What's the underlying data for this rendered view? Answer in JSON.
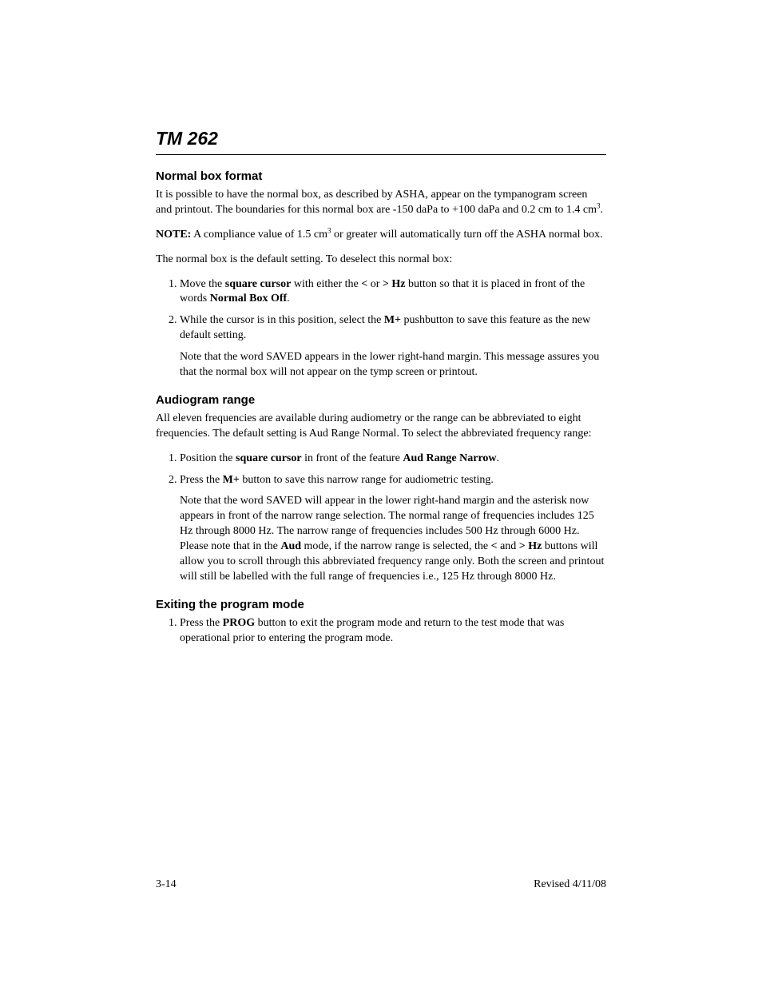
{
  "doc": {
    "title": "TM 262",
    "footer_left": "3-14",
    "footer_right": "Revised 4/11/08"
  },
  "sections": {
    "normal_box": {
      "heading": "Normal box format",
      "p1_a": "It is possible to have the normal box, as described by ASHA, appear on the tympanogram screen and printout. The boundaries for this normal box are -150 daPa to +100 daPa and 0.2 cm to 1.4 cm",
      "p1_sup": "3",
      "p1_b": ".",
      "note_label": "NOTE:",
      "note_a": "  A compliance value of 1.5 cm",
      "note_sup": "3",
      "note_b": " or greater will automatically turn off the ASHA normal box.",
      "p2": "The normal box is the default setting. To deselect this normal box:",
      "li1_a": "Move the ",
      "li1_b": "square cursor",
      "li1_c": " with either the ",
      "li1_d": "<",
      "li1_e": " or ",
      "li1_f": "> Hz",
      "li1_g": " button so that it is placed in front of the words ",
      "li1_h": "Normal Box Off",
      "li1_i": ".",
      "li2_a": "While the cursor is in this position, select the ",
      "li2_b": "M+",
      "li2_c": " pushbutton to save this feature as the new default setting.",
      "li2_note": "Note that the word SAVED appears in the lower right-hand margin. This message assures you that the normal box will not appear on the tymp screen or printout."
    },
    "audiogram": {
      "heading": "Audiogram range",
      "p1": "All eleven frequencies are available during audiometry or the range can be abbreviated to eight frequencies. The default setting is Aud Range Normal. To select the abbreviated frequency range:",
      "li1_a": "Position the ",
      "li1_b": "square cursor",
      "li1_c": " in front of the feature ",
      "li1_d": "Aud Range Narrow",
      "li1_e": ".",
      "li2_a": "Press the ",
      "li2_b": "M+",
      "li2_c": " button to save this narrow range for audiometric testing.",
      "li2_note_a": "Note that the word SAVED will appear in the lower right-hand margin and the asterisk now appears in front of the narrow range selection. The normal range of frequencies includes 125 Hz through 8000 Hz. The narrow range of frequencies includes 500 Hz through 6000 Hz. Please note that in the ",
      "li2_note_b": "Aud",
      "li2_note_c": " mode, if the narrow range is selected, the ",
      "li2_note_d": "<",
      "li2_note_e": " and ",
      "li2_note_f": "> Hz",
      "li2_note_g": " buttons will allow you to scroll through this abbreviated frequency range only. Both the screen and printout will still be labelled with the full range of frequencies i.e., 125 Hz through 8000 Hz."
    },
    "exiting": {
      "heading": "Exiting the program mode",
      "li1_a": "Press the ",
      "li1_b": "PROG",
      "li1_c": " button to exit the program mode and return to the test mode that was operational prior to entering the program mode."
    }
  }
}
